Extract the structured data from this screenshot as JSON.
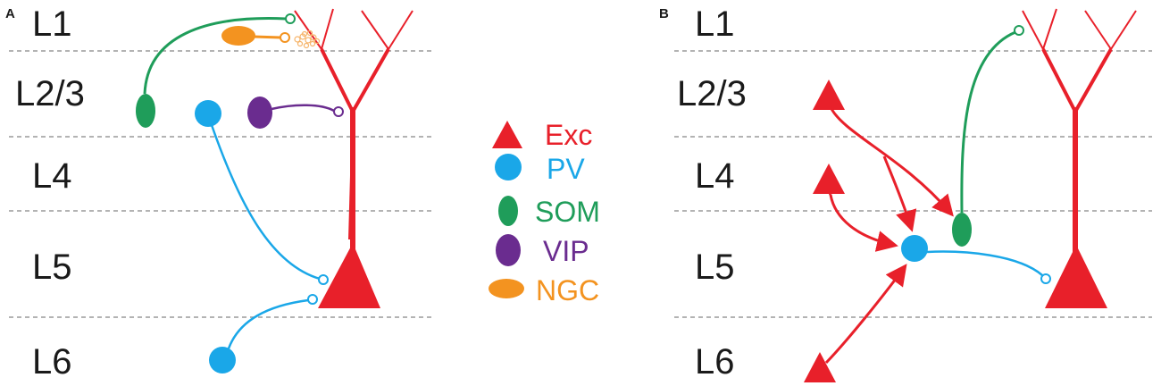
{
  "panels": [
    {
      "label": "A",
      "layers": [
        "L1",
        "L2/3",
        "L4",
        "L5",
        "L6"
      ]
    },
    {
      "label": "B",
      "layers": [
        "L1",
        "L2/3",
        "L4",
        "L5",
        "L6"
      ]
    }
  ],
  "legend": [
    {
      "label": "Exc",
      "shape": "triangle",
      "color": "#e8202a"
    },
    {
      "label": "PV",
      "shape": "circle",
      "color": "#1aa7e8"
    },
    {
      "label": "SOM",
      "shape": "ellipse-vertical",
      "color": "#1f9d5a"
    },
    {
      "label": "VIP",
      "shape": "ellipse-vertical",
      "color": "#6a2c8f"
    },
    {
      "label": "NGC",
      "shape": "ellipse-horizontal",
      "color": "#f39320"
    }
  ],
  "colors": {
    "exc": "#e8202a",
    "pv": "#1aa7e8",
    "som": "#1f9d5a",
    "vip": "#6a2c8f",
    "ngc": "#f39320"
  }
}
